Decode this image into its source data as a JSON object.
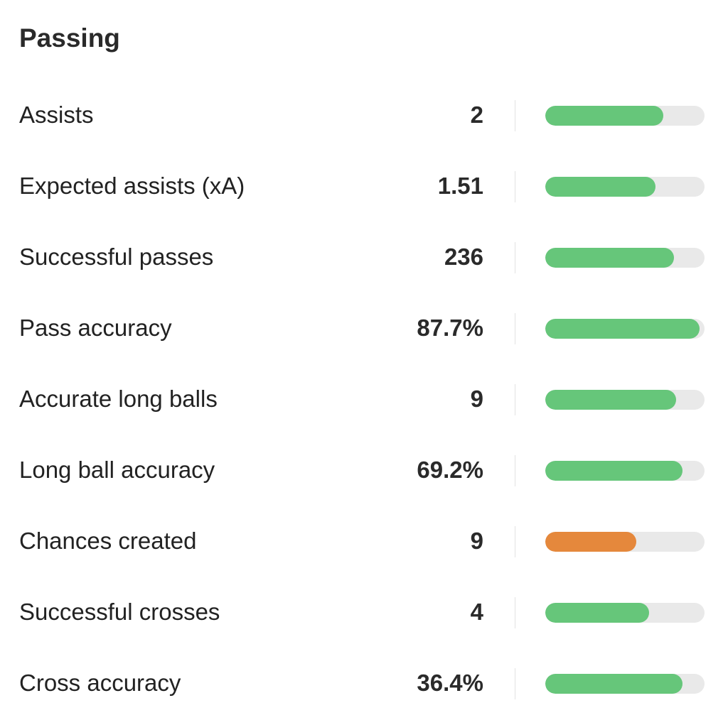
{
  "section": {
    "title": "Passing"
  },
  "colors": {
    "good": "#66c67a",
    "average": "#e5883c",
    "track": "#e9e9e9"
  },
  "stats": [
    {
      "label": "Assists",
      "value": "2",
      "level": 0.74,
      "rating": "good"
    },
    {
      "label": "Expected assists (xA)",
      "value": "1.51",
      "level": 0.69,
      "rating": "good"
    },
    {
      "label": "Successful passes",
      "value": "236",
      "level": 0.81,
      "rating": "good"
    },
    {
      "label": "Pass accuracy",
      "value": "87.7%",
      "level": 0.97,
      "rating": "good"
    },
    {
      "label": "Accurate long balls",
      "value": "9",
      "level": 0.82,
      "rating": "good"
    },
    {
      "label": "Long ball accuracy",
      "value": "69.2%",
      "level": 0.86,
      "rating": "good"
    },
    {
      "label": "Chances created",
      "value": "9",
      "level": 0.57,
      "rating": "average"
    },
    {
      "label": "Successful crosses",
      "value": "4",
      "level": 0.65,
      "rating": "good"
    },
    {
      "label": "Cross accuracy",
      "value": "36.4%",
      "level": 0.86,
      "rating": "good"
    }
  ]
}
